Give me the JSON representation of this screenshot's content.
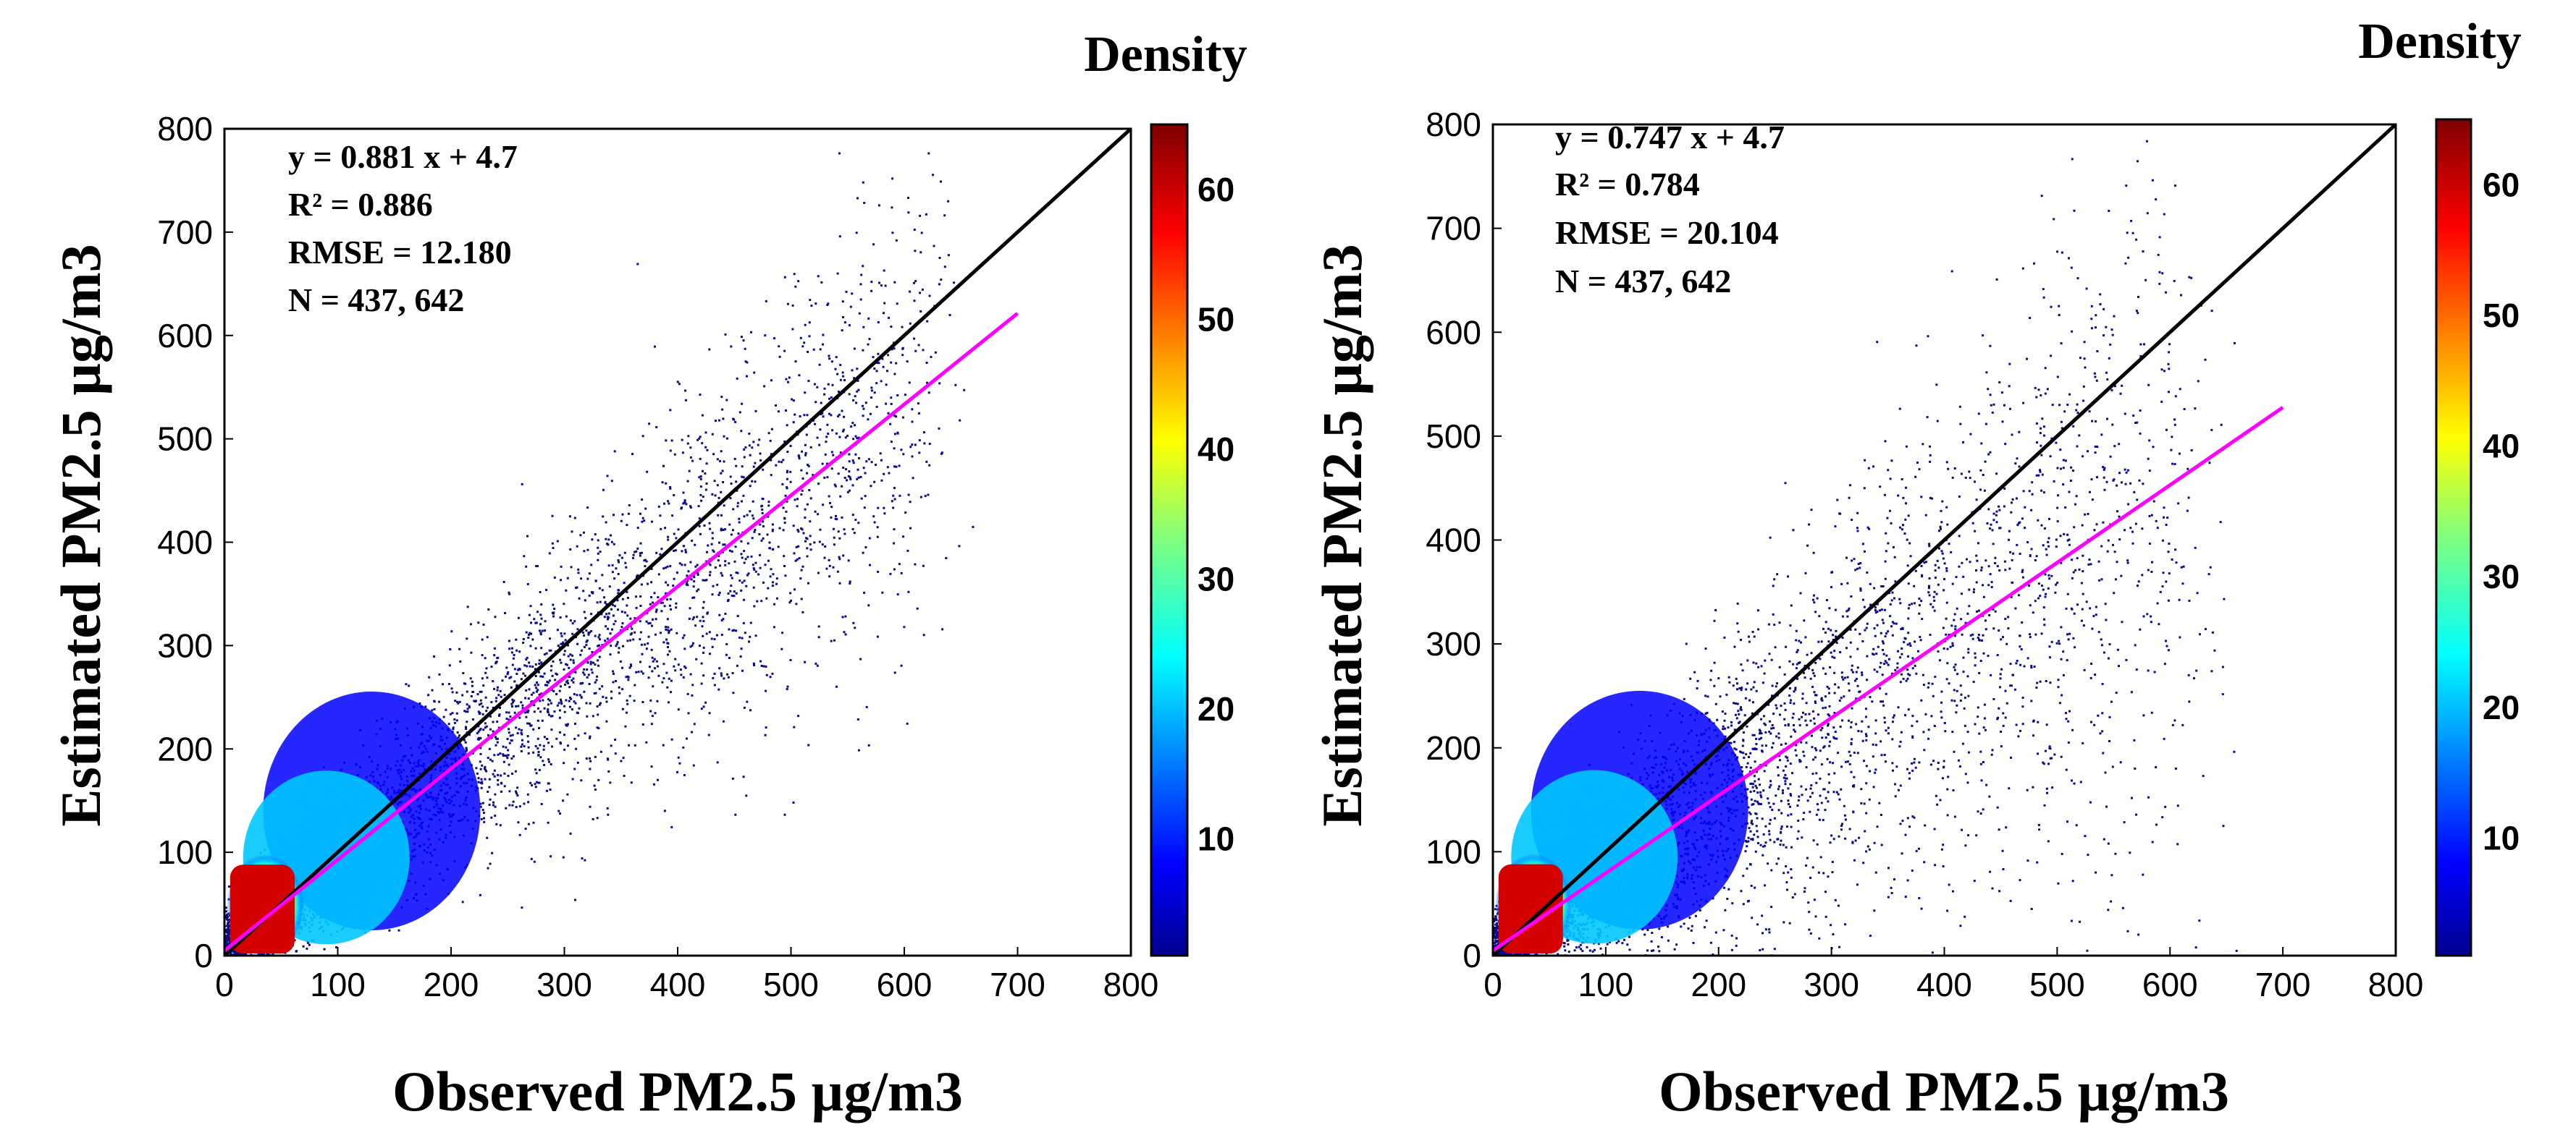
{
  "chart_data": [
    {
      "type": "scatter",
      "title": "",
      "xlabel": "Observed PM2.5 µg/m3",
      "ylabel": "Estimated PM2.5 µg/m3",
      "xlim": [
        0,
        800
      ],
      "ylim": [
        0,
        800
      ],
      "x_ticks": [
        "0",
        "100",
        "200",
        "300",
        "400",
        "500",
        "600",
        "700",
        "800"
      ],
      "y_ticks": [
        "0",
        "100",
        "200",
        "300",
        "400",
        "500",
        "600",
        "700",
        "800"
      ],
      "stats": {
        "equation": "y = 0.881 x + 4.7",
        "r2": "R² = 0.886",
        "rmse": "RMSE =  12.180",
        "n": "N = 437, 642"
      },
      "fit_line": {
        "slope": 0.881,
        "intercept": 4.7,
        "x_range": [
          0,
          700
        ],
        "color": "#ff00ff"
      },
      "identity_line": {
        "x_range": [
          0,
          800
        ],
        "color": "#000000"
      },
      "point_cloud_spread": 0.16,
      "colorbar": {
        "title": "Density",
        "ticks": [
          "10",
          "20",
          "30",
          "40",
          "50",
          "60"
        ],
        "range": [
          1,
          65
        ],
        "colormap": "jet"
      },
      "point_color": "#0a0a8c"
    },
    {
      "type": "scatter",
      "title": "",
      "xlabel": "Observed PM2.5 µg/m3",
      "ylabel": "Estimated PM2.5 µg/m3",
      "xlim": [
        0,
        800
      ],
      "ylim": [
        0,
        800
      ],
      "x_ticks": [
        "0",
        "100",
        "200",
        "300",
        "400",
        "500",
        "600",
        "700",
        "800"
      ],
      "y_ticks": [
        "0",
        "100",
        "200",
        "300",
        "400",
        "500",
        "600",
        "700",
        "800"
      ],
      "stats": {
        "equation": "y = 0.747 x + 4.7",
        "r2": "R² = 0.784",
        "rmse": "RMSE =  20.104",
        "n": "N = 437, 642"
      },
      "fit_line": {
        "slope": 0.747,
        "intercept": 4.7,
        "x_range": [
          0,
          700
        ],
        "color": "#ff00ff"
      },
      "identity_line": {
        "x_range": [
          0,
          800
        ],
        "color": "#000000"
      },
      "point_cloud_spread": 0.26,
      "colorbar": {
        "title": "Density",
        "ticks": [
          "10",
          "20",
          "30",
          "40",
          "50",
          "60"
        ],
        "range": [
          1,
          65
        ],
        "colormap": "jet"
      },
      "point_color": "#0a0a8c"
    }
  ]
}
